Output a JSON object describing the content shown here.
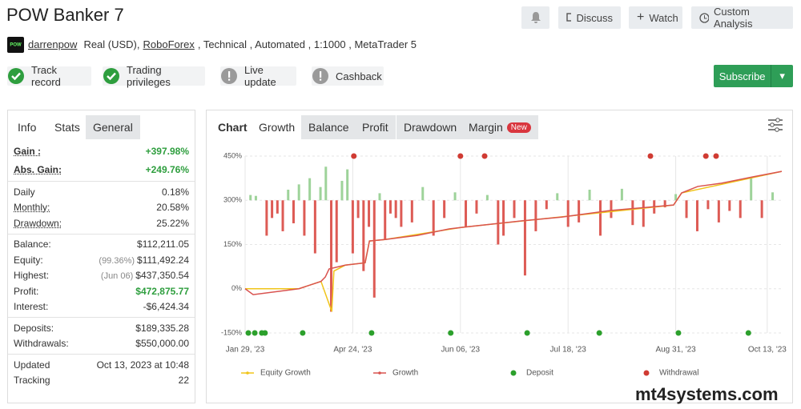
{
  "header": {
    "title": "POW Banker 7",
    "user": "darrenpow",
    "account": [
      "Real (USD),",
      "RoboForex",
      ", Technical , Automated , 1:1000 , MetaTrader 5"
    ],
    "buttons": [
      "Discuss",
      "Watch",
      "Custom Analysis"
    ],
    "subscribe": "Subscribe",
    "badges": [
      "Track record",
      "Trading privileges",
      "Live update",
      "Cashback"
    ]
  },
  "info": {
    "tabs": [
      "Info",
      "Stats",
      "General"
    ],
    "groups": [
      [
        {
          "label": "Gain :",
          "value": "+397.98%",
          "color": "#2e9e3e"
        },
        {
          "label": "Abs. Gain:",
          "value": "+249.76%",
          "color": "#2e9e3e"
        }
      ],
      [
        {
          "label": "Daily",
          "value": "0.18%"
        },
        {
          "label": "Monthly:",
          "value": "20.58%"
        },
        {
          "label": "Drawdown:",
          "value": "25.22%"
        }
      ],
      [
        {
          "label": "Balance:",
          "value": "$112,211.05"
        },
        {
          "label": "Equity:",
          "note": "(99.36%)",
          "value": "$111,492.24"
        },
        {
          "label": "Highest:",
          "note": "(Jun 06)",
          "value": "$437,350.54"
        },
        {
          "label": "Profit:",
          "value": "$472,875.77",
          "color": "#2e9e3e"
        },
        {
          "label": "Interest:",
          "value": "-$6,424.34"
        }
      ],
      [
        {
          "label": "Deposits:",
          "value": "$189,335.28"
        },
        {
          "label": "Withdrawals:",
          "value": "$550,000.00"
        }
      ],
      [
        {
          "label": "Updated",
          "value": "Oct 13, 2023 at 10:48"
        },
        {
          "label": "Tracking",
          "value": "22"
        }
      ]
    ]
  },
  "chart_tabs": [
    "Chart",
    "Growth",
    "Balance",
    "Profit",
    "Drawdown",
    "Margin"
  ],
  "new_badge": "New",
  "chart_data": {
    "type": "line",
    "xlim": [
      0,
      100
    ],
    "xticks": [
      {
        "value": 0,
        "label": "Jan 29, '23"
      },
      {
        "value": 20,
        "label": "Apr 24, '23"
      },
      {
        "value": 40,
        "label": "Jun 06, '23"
      },
      {
        "value": 60,
        "label": "Jul 18, '23"
      },
      {
        "value": 80,
        "label": "Aug 31, '23"
      },
      {
        "value": 97,
        "label": "Oct 13, '23"
      }
    ],
    "ylim": [
      -150,
      450
    ],
    "yticks": [
      {
        "value": -150,
        "label": "-150%"
      },
      {
        "value": 0,
        "label": "0%"
      },
      {
        "value": 150,
        "label": "150%"
      },
      {
        "value": 300,
        "label": "300%"
      },
      {
        "value": 450,
        "label": "450%"
      }
    ],
    "y2lim": [
      -15,
      5
    ],
    "grid": true,
    "series": [
      {
        "type": "bar",
        "axis": "y2",
        "up_color": "#9ed39a",
        "down_color": "#dd5b55",
        "x": [
          1,
          2,
          4,
          5,
          6,
          7,
          8,
          9,
          10,
          11,
          12,
          13,
          14,
          15,
          16,
          17,
          18,
          19,
          20,
          21,
          22,
          23,
          24,
          25,
          26,
          27,
          28,
          29,
          31,
          33,
          35,
          37,
          39,
          41,
          43,
          45,
          47,
          48,
          50,
          52,
          54,
          56,
          58,
          60,
          62,
          64,
          66,
          68,
          70,
          72,
          74,
          76,
          78,
          80,
          82,
          84,
          86,
          88,
          90,
          92,
          94,
          96,
          98
        ],
        "values": [
          0.6,
          0.5,
          -4,
          -2,
          -1.5,
          -3.5,
          1.2,
          -2.6,
          1.8,
          -4,
          2.5,
          -6,
          1.5,
          3.8,
          -12.6,
          -7,
          2.2,
          3.5,
          -6,
          -2,
          -8,
          -3,
          -11,
          0.8,
          -4.5,
          -1.5,
          -2,
          -3,
          -2.5,
          1.5,
          -4,
          -2,
          0.9,
          -3,
          -1.5,
          0.6,
          -5,
          -4,
          -2,
          -8.5,
          -3.5,
          -1,
          0.8,
          -3,
          -2.5,
          1.2,
          -4,
          -2,
          1.3,
          -2.8,
          -3,
          -1.5,
          -0.8,
          0.7,
          -2,
          -3.5,
          -1,
          -2.5,
          -1.2,
          -2,
          2.5,
          -2,
          0.9
        ]
      },
      {
        "type": "line",
        "name": "Equity Growth",
        "color": "#f0c419",
        "x": [
          0,
          10,
          14.1,
          16.1,
          16.5,
          18.6,
          22.3,
          23.1,
          26,
          40.2,
          79.6,
          81.1,
          99.7
        ],
        "values": [
          0,
          0,
          25,
          -77,
          60,
          80,
          88,
          162,
          167,
          208,
          284,
          325,
          398
        ]
      },
      {
        "type": "line",
        "name": "Growth",
        "color": "#d9534f",
        "x": [
          0,
          1.5,
          10,
          14.1,
          14.9,
          15.6,
          18.6,
          22.3,
          23.1,
          26,
          32,
          37.9,
          40.2,
          51.3,
          58.8,
          67.7,
          79.6,
          81.1,
          84.1,
          88.5,
          94.5,
          99.7
        ],
        "values": [
          0,
          -20,
          0,
          25,
          40,
          67,
          80,
          88,
          162,
          167,
          181,
          203,
          208,
          230,
          243,
          265,
          284,
          325,
          347,
          358,
          380,
          398
        ]
      },
      {
        "type": "scatter",
        "name": "Deposit",
        "color": "#2ca02c",
        "x": [
          0.6,
          1.8,
          3.1,
          3.7,
          10.7,
          23.5,
          38.2,
          52.4,
          65.8,
          80.5,
          93.5
        ],
        "values": [
          -150,
          -150,
          -150,
          -150,
          -150,
          -150,
          -150,
          -150,
          -150,
          -150,
          -150
        ]
      },
      {
        "type": "scatter",
        "name": "Withdrawal",
        "color": "#d03b33",
        "x": [
          20.2,
          40,
          44.5,
          75.3,
          85.6,
          87.5
        ],
        "values": [
          450,
          450,
          450,
          450,
          450,
          450
        ]
      }
    ]
  },
  "watermark": "mt4systems.com"
}
